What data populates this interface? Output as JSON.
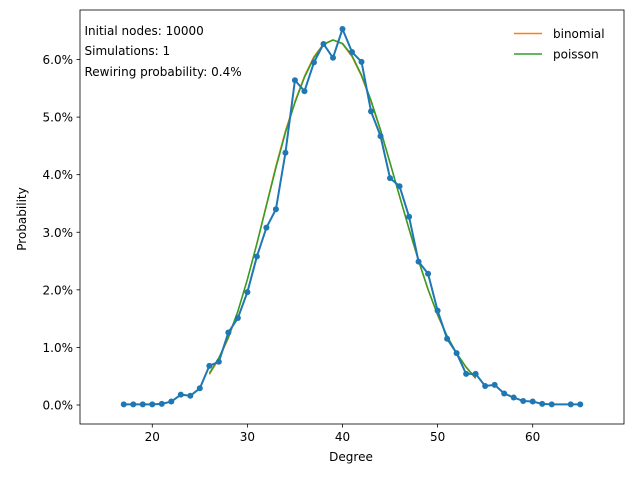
{
  "chart_data": {
    "type": "line",
    "xlabel": "Degree",
    "ylabel": "Probability",
    "xlim": [
      12.4,
      69.6
    ],
    "ylim": [
      -0.0033,
      0.0686
    ],
    "x_ticks": [
      20,
      30,
      40,
      50,
      60
    ],
    "y_ticks": [
      0.0,
      0.01,
      0.02,
      0.03,
      0.04,
      0.05,
      0.06
    ],
    "y_tick_labels": [
      "0.0%",
      "1.0%",
      "2.0%",
      "3.0%",
      "4.0%",
      "5.0%",
      "6.0%"
    ],
    "annotations": [
      "Initial nodes: 10000",
      "Simulations: 1",
      "Rewiring probability: 0.4%"
    ],
    "legend_position": "top-right",
    "grid": false,
    "series": [
      {
        "name": "",
        "color": "#1f77b4",
        "marker": "circle",
        "x": [
          17,
          18,
          19,
          20,
          21,
          22,
          23,
          24,
          25,
          26,
          27,
          28,
          29,
          30,
          31,
          32,
          33,
          34,
          35,
          36,
          37,
          38,
          39,
          40,
          41,
          42,
          43,
          44,
          45,
          46,
          47,
          48,
          49,
          50,
          51,
          52,
          53,
          54,
          55,
          56,
          57,
          58,
          59,
          60,
          61,
          62,
          64,
          65
        ],
        "y": [
          0.0001,
          0.0001,
          0.0001,
          0.0001,
          0.0002,
          0.0006,
          0.0018,
          0.0016,
          0.0029,
          0.0068,
          0.0075,
          0.0126,
          0.0151,
          0.0196,
          0.0258,
          0.0308,
          0.034,
          0.0438,
          0.0564,
          0.0545,
          0.0595,
          0.0627,
          0.0603,
          0.0653,
          0.0613,
          0.0596,
          0.051,
          0.0467,
          0.0394,
          0.038,
          0.0327,
          0.0249,
          0.0228,
          0.0164,
          0.0115,
          0.009,
          0.0054,
          0.0054,
          0.0033,
          0.0035,
          0.002,
          0.0013,
          0.0007,
          0.0006,
          0.0002,
          0.0001,
          0.0001,
          0.0001
        ]
      },
      {
        "name": "binomial",
        "color": "#ff7f0e",
        "x": [
          26,
          27,
          28,
          29,
          30,
          31,
          32,
          33,
          34,
          35,
          36,
          37,
          38,
          39,
          40,
          41,
          42,
          43,
          44,
          45,
          46,
          47,
          48,
          49,
          50,
          51,
          52,
          53,
          54
        ],
        "y": [
          0.0053,
          0.008,
          0.0116,
          0.0162,
          0.0218,
          0.0281,
          0.0348,
          0.0415,
          0.0476,
          0.0527,
          0.0571,
          0.0605,
          0.0627,
          0.0634,
          0.0627,
          0.0605,
          0.0571,
          0.0527,
          0.0476,
          0.042,
          0.0362,
          0.0305,
          0.025,
          0.02,
          0.0156,
          0.0119,
          0.0089,
          0.0065,
          0.0046
        ]
      },
      {
        "name": "poisson",
        "color": "#2ca02c",
        "x": [
          26,
          27,
          28,
          29,
          30,
          31,
          32,
          33,
          34,
          35,
          36,
          37,
          38,
          39,
          40,
          41,
          42,
          43,
          44,
          45,
          46,
          47,
          48,
          49,
          50,
          51,
          52,
          53,
          54
        ],
        "y": [
          0.0055,
          0.0082,
          0.0118,
          0.0163,
          0.0218,
          0.028,
          0.0346,
          0.0412,
          0.0473,
          0.0525,
          0.0569,
          0.0603,
          0.0626,
          0.0634,
          0.0628,
          0.0607,
          0.0573,
          0.0529,
          0.0478,
          0.0421,
          0.0363,
          0.0306,
          0.0251,
          0.0201,
          0.0157,
          0.012,
          0.009,
          0.0066,
          0.0047
        ]
      }
    ]
  }
}
